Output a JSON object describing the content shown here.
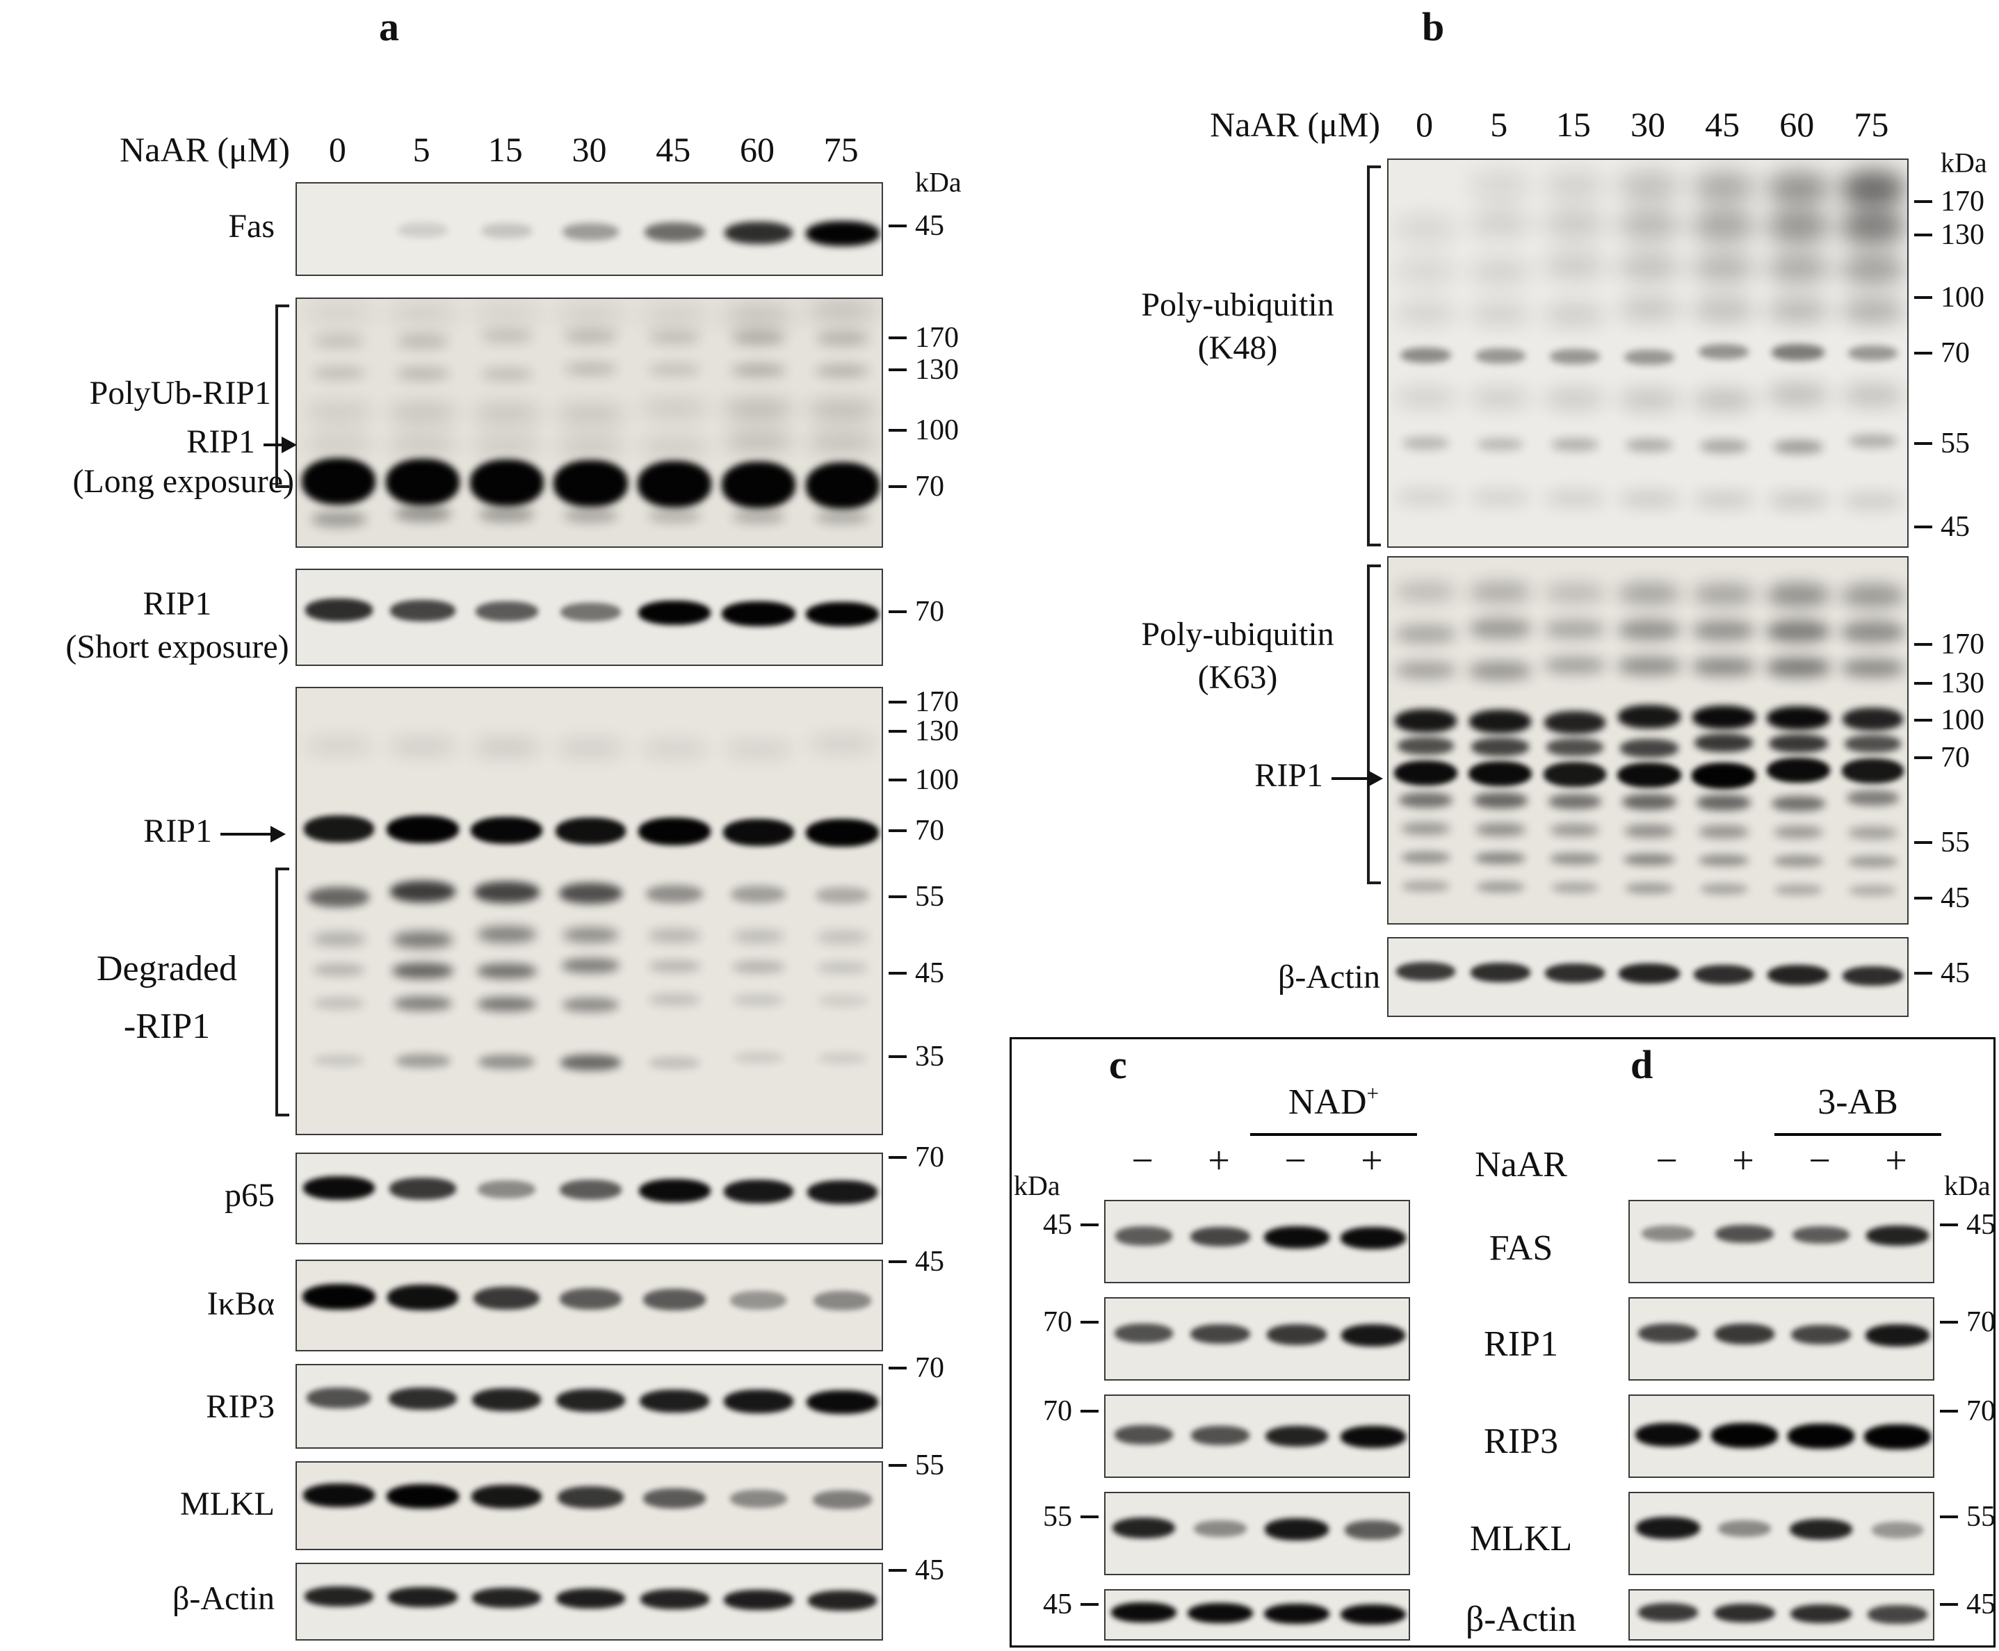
{
  "panel_a": {
    "label": "a",
    "dose_title": "NaAR (μM)",
    "doses": [
      "0",
      "5",
      "15",
      "30",
      "45",
      "60",
      "75"
    ],
    "labels": {
      "fas": "Fas",
      "polyub": "PolyUb-RIP1",
      "rip1": "RIP1",
      "long_exposure": "(Long exposure)",
      "short_exposure": "(Short exposure)",
      "degraded1": "Degraded",
      "degraded2": "-RIP1",
      "p65": "p65",
      "ikba": "IκBα",
      "rip3": "RIP3",
      "mlkl": "MLKL",
      "actin": "β-Actin"
    }
  },
  "panel_b": {
    "label": "b",
    "dose_title": "NaAR (μM)",
    "doses": [
      "0",
      "5",
      "15",
      "30",
      "45",
      "60",
      "75"
    ],
    "labels": {
      "polyub": "Poly-ubiquitin",
      "k48": "(K48)",
      "k63": "(K63)",
      "rip1": "RIP1",
      "actin": "β-Actin"
    }
  },
  "panel_cd": {
    "c_label": "c",
    "d_label": "d",
    "nad_base": "NAD",
    "nad_sup": "+",
    "ab_label": "3-AB",
    "kda": "kDa",
    "signs": [
      "−",
      "+",
      "−",
      "+"
    ],
    "rows": [
      "NaAR",
      "FAS",
      "RIP1",
      "RIP3",
      "MLKL",
      "β-Actin"
    ]
  },
  "colors": {
    "band": "#030303",
    "membrane": "#eae7e2",
    "border": "#3a3a3a"
  },
  "blots": {
    "a_fas": {
      "lanes": 7,
      "side": "right",
      "bg": "#edebe6",
      "markers": [
        {
          "label": "kDa",
          "y": 0.0,
          "kda": true
        },
        {
          "label": "45",
          "y": 0.47
        }
      ],
      "bands": [
        {
          "y": 0.52,
          "h": 30,
          "blur": 5,
          "i": [
            0.02,
            0.06,
            0.1,
            0.28,
            0.48,
            0.75,
            1.0
          ]
        }
      ]
    },
    "a_long": {
      "lanes": 7,
      "side": "right",
      "bg": "#e5e2db",
      "markers": [
        {
          "label": "170",
          "y": 0.16
        },
        {
          "label": "130",
          "y": 0.29
        },
        {
          "label": "100",
          "y": 0.53
        },
        {
          "label": "70",
          "y": 0.755
        }
      ],
      "bands": [
        {
          "y": 0.74,
          "h": 56,
          "blur": 5,
          "i": [
            1,
            1,
            1,
            1,
            1,
            1,
            1
          ]
        },
        {
          "y": 0.87,
          "h": 26,
          "blur": 8,
          "i": [
            0.25,
            0.3,
            0.25,
            0.2,
            0.15,
            0.18,
            0.18
          ]
        },
        {
          "y": 0.16,
          "h": 24,
          "blur": 9,
          "i": [
            0.1,
            0.13,
            0.1,
            0.12,
            0.1,
            0.18,
            0.16
          ]
        },
        {
          "y": 0.29,
          "h": 22,
          "blur": 9,
          "i": [
            0.12,
            0.15,
            0.12,
            0.14,
            0.1,
            0.2,
            0.18
          ]
        },
        {
          "y": 0.45,
          "h": 34,
          "blur": 14,
          "i": [
            0.06,
            0.09,
            0.08,
            0.08,
            0.06,
            0.14,
            0.13
          ]
        },
        {
          "y": 0.58,
          "h": 34,
          "blur": 14,
          "i": [
            0.05,
            0.07,
            0.06,
            0.07,
            0.05,
            0.12,
            0.11
          ]
        },
        {
          "y": 0.06,
          "h": 36,
          "blur": 16,
          "i": [
            0.03,
            0.04,
            0.03,
            0.04,
            0.04,
            0.12,
            0.12
          ]
        }
      ]
    },
    "a_short": {
      "lanes": 7,
      "side": "right",
      "bg": "#ebe9e4",
      "markers": [
        {
          "label": "70",
          "y": 0.44
        }
      ],
      "bands": [
        {
          "y": 0.44,
          "h": 30,
          "blur": 4,
          "i": [
            0.75,
            0.65,
            0.55,
            0.45,
            0.95,
            1.0,
            0.95
          ]
        }
      ]
    },
    "a_deg": {
      "lanes": 7,
      "side": "right",
      "bg": "#e8e5df",
      "markers": [
        {
          "label": "170",
          "y": 0.034
        },
        {
          "label": "130",
          "y": 0.099
        },
        {
          "label": "100",
          "y": 0.208
        },
        {
          "label": "70",
          "y": 0.321
        },
        {
          "label": "55",
          "y": 0.468
        },
        {
          "label": "45",
          "y": 0.639
        },
        {
          "label": "35",
          "y": 0.825
        }
      ],
      "bands": [
        {
          "y": 0.32,
          "h": 34,
          "blur": 4,
          "i": [
            0.85,
            0.95,
            0.92,
            0.88,
            0.95,
            0.9,
            0.95
          ]
        },
        {
          "y": 0.46,
          "h": 30,
          "blur": 6,
          "i": [
            0.5,
            0.68,
            0.65,
            0.6,
            0.32,
            0.25,
            0.2
          ]
        },
        {
          "y": 0.555,
          "h": 26,
          "blur": 8,
          "i": [
            0.18,
            0.42,
            0.38,
            0.33,
            0.15,
            0.12,
            0.1
          ]
        },
        {
          "y": 0.625,
          "h": 24,
          "blur": 7,
          "i": [
            0.15,
            0.5,
            0.45,
            0.38,
            0.14,
            0.15,
            0.08
          ]
        },
        {
          "y": 0.7,
          "h": 24,
          "blur": 7,
          "i": [
            0.1,
            0.38,
            0.42,
            0.33,
            0.1,
            0.08,
            0.05
          ]
        },
        {
          "y": 0.83,
          "h": 24,
          "blur": 6,
          "i": [
            0.07,
            0.25,
            0.3,
            0.48,
            0.1,
            0.05,
            0.04
          ]
        },
        {
          "y": 0.13,
          "h": 30,
          "blur": 14,
          "i": [
            0.04,
            0.06,
            0.08,
            0.06,
            0.04,
            0.04,
            0.05
          ]
        }
      ]
    },
    "a_p65": {
      "lanes": 7,
      "side": "right",
      "bg": "#ebe9e4",
      "markers": [
        {
          "label": "70",
          "y": 0.05
        }
      ],
      "bands": [
        {
          "y": 0.4,
          "h": 30,
          "blur": 4,
          "i": [
            0.9,
            0.7,
            0.35,
            0.55,
            0.9,
            0.85,
            0.85
          ]
        }
      ]
    },
    "a_ikba": {
      "lanes": 7,
      "side": "right",
      "bg": "#e9e6e0",
      "markers": [
        {
          "label": "45",
          "y": 0.02
        }
      ],
      "bands": [
        {
          "y": 0.42,
          "h": 32,
          "blur": 4,
          "i": [
            0.95,
            0.88,
            0.7,
            0.55,
            0.55,
            0.3,
            0.35
          ]
        }
      ]
    },
    "a_rip3": {
      "lanes": 7,
      "side": "right",
      "bg": "#ebe9e4",
      "markers": [
        {
          "label": "70",
          "y": 0.05
        }
      ],
      "bands": [
        {
          "y": 0.42,
          "h": 30,
          "blur": 4,
          "i": [
            0.6,
            0.75,
            0.8,
            0.8,
            0.82,
            0.85,
            0.9
          ]
        }
      ]
    },
    "a_mlkl": {
      "lanes": 7,
      "side": "right",
      "bg": "#e9e6e0",
      "markers": [
        {
          "label": "55",
          "y": 0.05
        }
      ],
      "bands": [
        {
          "y": 0.4,
          "h": 30,
          "blur": 4,
          "i": [
            0.9,
            0.95,
            0.85,
            0.7,
            0.55,
            0.35,
            0.4
          ]
        }
      ]
    },
    "a_actin": {
      "lanes": 7,
      "side": "right",
      "bg": "#ebe9e4",
      "markers": [
        {
          "label": "45",
          "y": 0.1
        }
      ],
      "bands": [
        {
          "y": 0.45,
          "h": 26,
          "blur": 4,
          "i": [
            0.8,
            0.82,
            0.8,
            0.82,
            0.8,
            0.82,
            0.8
          ]
        }
      ]
    },
    "b_k48": {
      "lanes": 7,
      "side": "right",
      "bg": "#edebe7",
      "markers": [
        {
          "label": "kDa",
          "y": 0.01,
          "kda": true
        },
        {
          "label": "170",
          "y": 0.11
        },
        {
          "label": "130",
          "y": 0.196
        },
        {
          "label": "100",
          "y": 0.357
        },
        {
          "label": "70",
          "y": 0.5
        },
        {
          "label": "55",
          "y": 0.732
        },
        {
          "label": "45",
          "y": 0.946
        }
      ],
      "bands": [
        {
          "y": 0.07,
          "h": 55,
          "blur": 16,
          "i": [
            0.02,
            0.03,
            0.05,
            0.13,
            0.22,
            0.32,
            0.5
          ]
        },
        {
          "y": 0.17,
          "h": 55,
          "blur": 16,
          "i": [
            0.03,
            0.05,
            0.08,
            0.16,
            0.24,
            0.32,
            0.42
          ]
        },
        {
          "y": 0.28,
          "h": 50,
          "blur": 16,
          "i": [
            0.03,
            0.05,
            0.08,
            0.13,
            0.18,
            0.23,
            0.28
          ]
        },
        {
          "y": 0.39,
          "h": 45,
          "blur": 15,
          "i": [
            0.04,
            0.05,
            0.07,
            0.1,
            0.13,
            0.16,
            0.2
          ]
        },
        {
          "y": 0.5,
          "h": 26,
          "blur": 5,
          "i": [
            0.35,
            0.3,
            0.3,
            0.3,
            0.32,
            0.42,
            0.3
          ]
        },
        {
          "y": 0.61,
          "h": 40,
          "blur": 14,
          "i": [
            0.05,
            0.06,
            0.08,
            0.1,
            0.12,
            0.14,
            0.12
          ]
        },
        {
          "y": 0.73,
          "h": 24,
          "blur": 7,
          "i": [
            0.16,
            0.15,
            0.18,
            0.2,
            0.22,
            0.26,
            0.2
          ]
        },
        {
          "y": 0.87,
          "h": 30,
          "blur": 12,
          "i": [
            0.05,
            0.05,
            0.06,
            0.08,
            0.08,
            0.1,
            0.08
          ]
        }
      ]
    },
    "b_k63": {
      "lanes": 7,
      "side": "right",
      "bg": "#e8e5df",
      "markers": [
        {
          "label": "170",
          "y": 0.24
        },
        {
          "label": "130",
          "y": 0.345
        },
        {
          "label": "100",
          "y": 0.445
        },
        {
          "label": "70",
          "y": 0.547
        },
        {
          "label": "55",
          "y": 0.777
        },
        {
          "label": "45",
          "y": 0.928
        }
      ],
      "bands": [
        {
          "y": 0.1,
          "h": 40,
          "blur": 12,
          "i": [
            0.12,
            0.18,
            0.12,
            0.22,
            0.22,
            0.32,
            0.28
          ]
        },
        {
          "y": 0.2,
          "h": 36,
          "blur": 10,
          "i": [
            0.2,
            0.26,
            0.2,
            0.3,
            0.3,
            0.4,
            0.33
          ]
        },
        {
          "y": 0.3,
          "h": 30,
          "blur": 10,
          "i": [
            0.25,
            0.3,
            0.25,
            0.33,
            0.35,
            0.42,
            0.35
          ]
        },
        {
          "y": 0.44,
          "h": 30,
          "blur": 5,
          "i": [
            0.85,
            0.85,
            0.8,
            0.85,
            0.9,
            0.9,
            0.8
          ]
        },
        {
          "y": 0.51,
          "h": 26,
          "blur": 5,
          "i": [
            0.6,
            0.65,
            0.6,
            0.65,
            0.7,
            0.7,
            0.6
          ]
        },
        {
          "y": 0.585,
          "h": 32,
          "blur": 4,
          "i": [
            0.9,
            0.9,
            0.85,
            0.9,
            0.95,
            0.9,
            0.85
          ]
        },
        {
          "y": 0.66,
          "h": 24,
          "blur": 6,
          "i": [
            0.45,
            0.5,
            0.45,
            0.5,
            0.5,
            0.45,
            0.4
          ]
        },
        {
          "y": 0.74,
          "h": 22,
          "blur": 7,
          "i": [
            0.28,
            0.32,
            0.28,
            0.32,
            0.3,
            0.28,
            0.25
          ]
        },
        {
          "y": 0.82,
          "h": 20,
          "blur": 6,
          "i": [
            0.3,
            0.35,
            0.3,
            0.35,
            0.3,
            0.28,
            0.25
          ]
        },
        {
          "y": 0.9,
          "h": 20,
          "blur": 6,
          "i": [
            0.2,
            0.25,
            0.2,
            0.25,
            0.22,
            0.2,
            0.18
          ]
        }
      ]
    },
    "b_actin": {
      "lanes": 7,
      "side": "right",
      "bg": "#ebe9e4",
      "markers": [
        {
          "label": "45",
          "y": 0.45
        }
      ],
      "bands": [
        {
          "y": 0.45,
          "h": 26,
          "blur": 4,
          "i": [
            0.7,
            0.75,
            0.75,
            0.8,
            0.75,
            0.8,
            0.75
          ]
        }
      ]
    },
    "c_fas": {
      "lanes": 4,
      "side": "left",
      "bg": "#ebe9e4",
      "markers": [
        {
          "label": "45",
          "y": 0.3
        }
      ],
      "bands": [
        {
          "y": 0.45,
          "h": 28,
          "blur": 4,
          "i": [
            0.55,
            0.65,
            0.9,
            0.9
          ]
        }
      ]
    },
    "c_rip1": {
      "lanes": 4,
      "side": "left",
      "bg": "#ebe9e4",
      "markers": [
        {
          "label": "70",
          "y": 0.3
        }
      ],
      "bands": [
        {
          "y": 0.45,
          "h": 28,
          "blur": 4,
          "i": [
            0.6,
            0.65,
            0.7,
            0.85
          ]
        }
      ]
    },
    "c_rip3": {
      "lanes": 4,
      "side": "left",
      "bg": "#ebe9e4",
      "markers": [
        {
          "label": "70",
          "y": 0.2
        }
      ],
      "bands": [
        {
          "y": 0.5,
          "h": 28,
          "blur": 4,
          "i": [
            0.6,
            0.6,
            0.8,
            0.9
          ]
        }
      ]
    },
    "c_mlkl": {
      "lanes": 4,
      "side": "left",
      "bg": "#ebe9e4",
      "markers": [
        {
          "label": "55",
          "y": 0.3
        }
      ],
      "bands": [
        {
          "y": 0.45,
          "h": 28,
          "blur": 4,
          "i": [
            0.8,
            0.35,
            0.85,
            0.55
          ]
        }
      ]
    },
    "c_actin": {
      "lanes": 4,
      "side": "left",
      "bg": "#ebe9e4",
      "markers": [
        {
          "label": "45",
          "y": 0.3
        }
      ],
      "bands": [
        {
          "y": 0.48,
          "h": 26,
          "blur": 4,
          "i": [
            0.9,
            0.9,
            0.9,
            0.9
          ]
        }
      ]
    },
    "d_fas": {
      "lanes": 4,
      "side": "right",
      "bg": "#ebe9e4",
      "markers": [
        {
          "label": "45",
          "y": 0.3
        }
      ],
      "bands": [
        {
          "y": 0.42,
          "h": 26,
          "blur": 4,
          "i": [
            0.35,
            0.6,
            0.55,
            0.8
          ]
        }
      ]
    },
    "d_rip1": {
      "lanes": 4,
      "side": "right",
      "bg": "#ebe9e4",
      "markers": [
        {
          "label": "70",
          "y": 0.3
        }
      ],
      "bands": [
        {
          "y": 0.45,
          "h": 28,
          "blur": 4,
          "i": [
            0.65,
            0.7,
            0.65,
            0.85
          ]
        }
      ]
    },
    "d_rip3": {
      "lanes": 4,
      "side": "right",
      "bg": "#ebe9e4",
      "markers": [
        {
          "label": "70",
          "y": 0.2
        }
      ],
      "bands": [
        {
          "y": 0.5,
          "h": 30,
          "blur": 4,
          "i": [
            0.9,
            0.95,
            0.95,
            0.95
          ]
        }
      ]
    },
    "d_mlkl": {
      "lanes": 4,
      "side": "right",
      "bg": "#ebe9e4",
      "markers": [
        {
          "label": "55",
          "y": 0.3
        }
      ],
      "bands": [
        {
          "y": 0.45,
          "h": 28,
          "blur": 4,
          "i": [
            0.85,
            0.35,
            0.8,
            0.3
          ]
        }
      ]
    },
    "d_actin": {
      "lanes": 4,
      "side": "right",
      "bg": "#ebe9e4",
      "markers": [
        {
          "label": "45",
          "y": 0.3
        }
      ],
      "bands": [
        {
          "y": 0.48,
          "h": 26,
          "blur": 4,
          "i": [
            0.7,
            0.75,
            0.75,
            0.65
          ]
        }
      ]
    }
  }
}
